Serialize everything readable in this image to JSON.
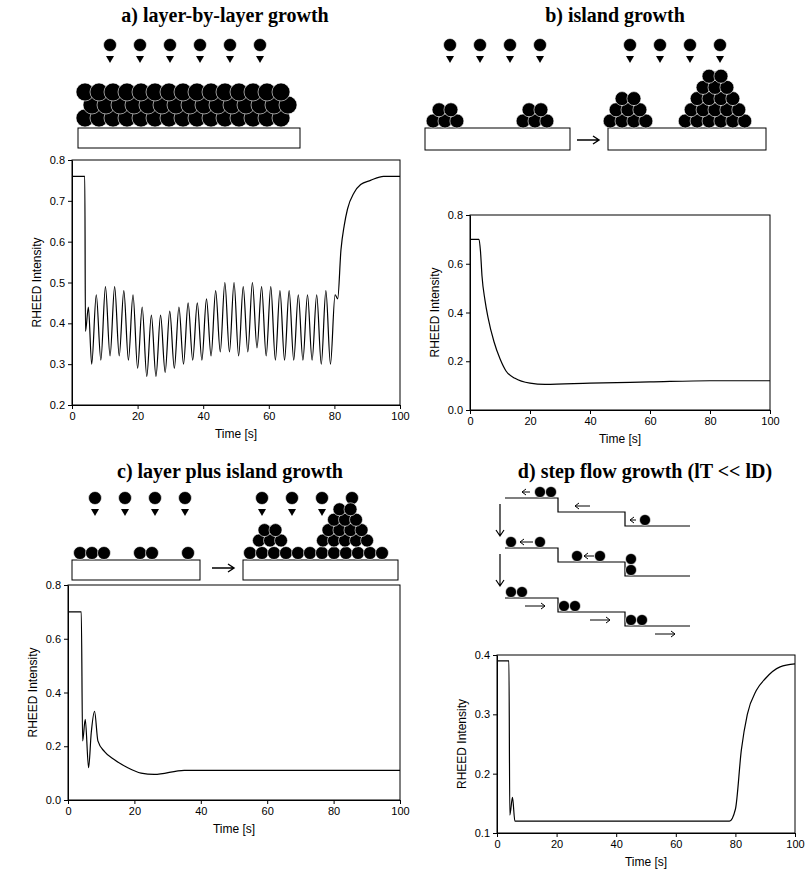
{
  "chart_data": [
    {
      "type": "line",
      "title": "a) layer-by-layer growth",
      "x_label": "Time [s]",
      "y_label": "RHEED Intensity",
      "color": "#000000",
      "x": [
        0,
        3.9,
        4.1,
        5.0,
        6.0,
        7.4,
        8.8,
        10.2,
        11.6,
        13.0,
        14.4,
        15.8,
        17.2,
        18.6,
        20.0,
        21.4,
        22.8,
        24.2,
        25.6,
        27.0,
        28.4,
        29.8,
        31.2,
        32.6,
        34.0,
        35.4,
        36.8,
        38.2,
        39.6,
        41.0,
        42.4,
        43.8,
        45.2,
        46.6,
        48.0,
        49.4,
        50.8,
        52.2,
        53.6,
        55.0,
        56.4,
        57.8,
        59.2,
        60.6,
        62.0,
        63.4,
        64.8,
        66.2,
        67.6,
        69.0,
        70.4,
        71.8,
        73.2,
        74.6,
        76.0,
        77.4,
        78.8,
        80.2,
        81.0,
        82.0,
        83.0,
        84.0,
        86.0,
        88.0,
        91.0,
        95.0,
        100
      ],
      "values": [
        0.76,
        0.76,
        0.38,
        0.44,
        0.3,
        0.47,
        0.31,
        0.49,
        0.32,
        0.49,
        0.32,
        0.48,
        0.31,
        0.47,
        0.29,
        0.44,
        0.27,
        0.42,
        0.27,
        0.42,
        0.28,
        0.43,
        0.29,
        0.44,
        0.3,
        0.45,
        0.31,
        0.45,
        0.31,
        0.46,
        0.32,
        0.48,
        0.33,
        0.5,
        0.33,
        0.5,
        0.32,
        0.49,
        0.33,
        0.5,
        0.34,
        0.49,
        0.32,
        0.49,
        0.31,
        0.48,
        0.31,
        0.48,
        0.31,
        0.47,
        0.31,
        0.47,
        0.31,
        0.47,
        0.3,
        0.48,
        0.3,
        0.47,
        0.46,
        0.58,
        0.64,
        0.68,
        0.72,
        0.74,
        0.75,
        0.76,
        0.76
      ],
      "xlim": [
        0,
        100
      ],
      "ylim": [
        0.2,
        0.8
      ],
      "xticks": [
        0,
        20,
        40,
        60,
        80,
        100
      ],
      "yticks": [
        0.2,
        0.3,
        0.4,
        0.5,
        0.6,
        0.7,
        0.8
      ]
    },
    {
      "type": "line",
      "title": "b) island growth",
      "x_label": "Time [s]",
      "y_label": "RHEED Intensity",
      "color": "#000000",
      "x": [
        0,
        3,
        3.5,
        4,
        5,
        6,
        8,
        10,
        12,
        15,
        20,
        25,
        40,
        60,
        80,
        100
      ],
      "values": [
        0.7,
        0.7,
        0.65,
        0.55,
        0.45,
        0.38,
        0.28,
        0.21,
        0.16,
        0.13,
        0.11,
        0.105,
        0.11,
        0.115,
        0.12,
        0.12
      ],
      "xlim": [
        0,
        100
      ],
      "ylim": [
        0,
        0.8
      ],
      "xticks": [
        0,
        20,
        40,
        60,
        80,
        100
      ],
      "yticks": [
        {
          "value": 0,
          "label": "0.0"
        },
        0.2,
        0.4,
        0.6,
        0.8
      ]
    },
    {
      "type": "line",
      "title": "c) layer plus island growth",
      "x_label": "Time [s]",
      "y_label": "RHEED Intensity",
      "color": "#000000",
      "x": [
        0,
        4.0,
        4.4,
        5.2,
        6.2,
        7.0,
        8.0,
        9.0,
        11,
        14,
        18,
        22,
        26,
        35,
        60,
        100
      ],
      "values": [
        0.7,
        0.7,
        0.22,
        0.3,
        0.12,
        0.25,
        0.33,
        0.22,
        0.18,
        0.15,
        0.12,
        0.1,
        0.095,
        0.11,
        0.11,
        0.11
      ],
      "xlim": [
        0,
        100
      ],
      "ylim": [
        0,
        0.8
      ],
      "xticks": [
        0,
        20,
        40,
        60,
        80,
        100
      ],
      "yticks": [
        {
          "value": 0,
          "label": "0.0"
        },
        0.2,
        0.4,
        0.6,
        0.8
      ]
    },
    {
      "type": "line",
      "title": "d) step flow growth (lT << lD)",
      "x_label": "Time [s]",
      "y_label": "RHEED Intensity",
      "color": "#000000",
      "x": [
        0,
        4,
        4.3,
        5.2,
        6.0,
        20,
        40,
        60,
        78,
        80,
        82,
        84,
        87,
        90,
        95,
        100
      ],
      "values": [
        0.39,
        0.39,
        0.13,
        0.16,
        0.12,
        0.12,
        0.12,
        0.12,
        0.12,
        0.14,
        0.24,
        0.3,
        0.34,
        0.36,
        0.38,
        0.385
      ],
      "xlim": [
        0,
        100
      ],
      "ylim": [
        0.1,
        0.4
      ],
      "xticks": [
        0,
        20,
        40,
        60,
        80,
        100
      ],
      "yticks": [
        0.1,
        0.2,
        0.3,
        0.4
      ]
    }
  ]
}
